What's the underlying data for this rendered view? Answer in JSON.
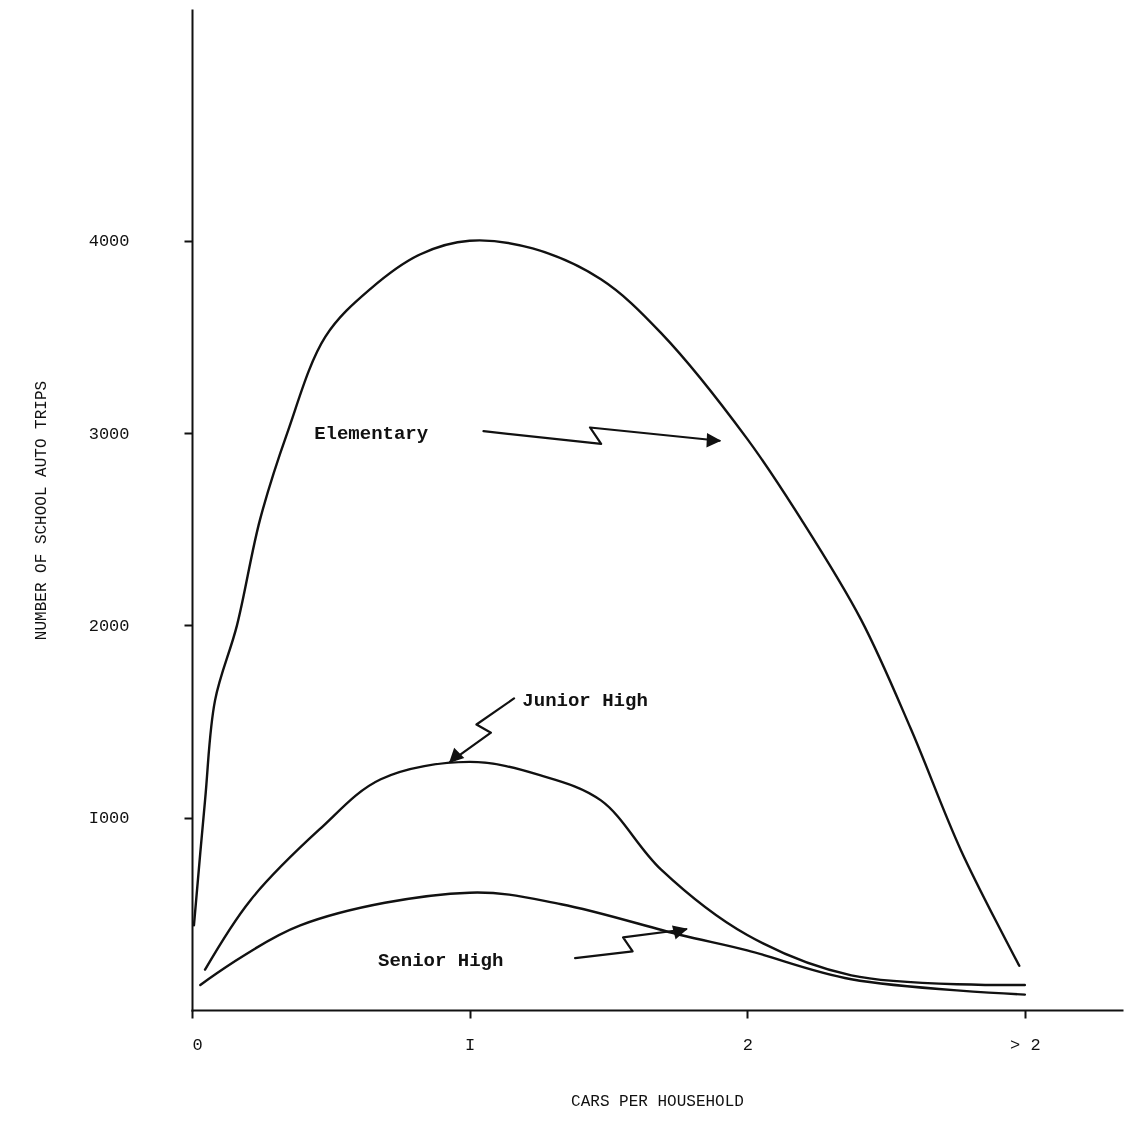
{
  "chart_data": {
    "type": "line",
    "xlabel": "CARS    PER    HOUSEHOLD",
    "ylabel": "NUMBER  OF  SCHOOL  AUTO  TRIPS",
    "xlim": [
      0,
      3.35
    ],
    "xticks": [
      0,
      {
        "value": 1,
        "label": "I"
      },
      2,
      {
        "value": 3,
        "label": "> 2"
      }
    ],
    "ylim": [
      0,
      5200
    ],
    "yticks": [
      {
        "value": 1000,
        "label": "I000"
      },
      2000,
      3000,
      4000
    ],
    "grid": false,
    "marker": "none",
    "line_style": "solid",
    "series": [
      {
        "name": "Elementary",
        "color": "#111111",
        "x": [
          0.007,
          0.047,
          0.083,
          0.162,
          0.245,
          0.343,
          0.48,
          0.643,
          0.823,
          1.0,
          1.227,
          1.473,
          1.69,
          2.0,
          2.195,
          2.41,
          2.59,
          2.77,
          2.98
        ],
        "values": [
          440,
          1090,
          1610,
          2000,
          2550,
          3000,
          3500,
          3750,
          3930,
          4000,
          3960,
          3800,
          3520,
          2970,
          2550,
          2030,
          1460,
          830,
          230
        ]
      },
      {
        "name": "Junior High",
        "color": "#111111",
        "x": [
          0.047,
          0.21,
          0.46,
          0.68,
          1.0,
          1.256,
          1.473,
          1.69,
          2.0,
          2.375,
          3.0
        ],
        "values": [
          210,
          570,
          940,
          1200,
          1290,
          1220,
          1090,
          730,
          390,
          180,
          130
        ]
      },
      {
        "name": "Senior High",
        "color": "#111111",
        "x": [
          0.03,
          0.39,
          1.0,
          1.33,
          1.76,
          2.0,
          2.375,
          3.0
        ],
        "values": [
          130,
          440,
          610,
          550,
          390,
          310,
          160,
          80
        ]
      }
    ]
  }
}
